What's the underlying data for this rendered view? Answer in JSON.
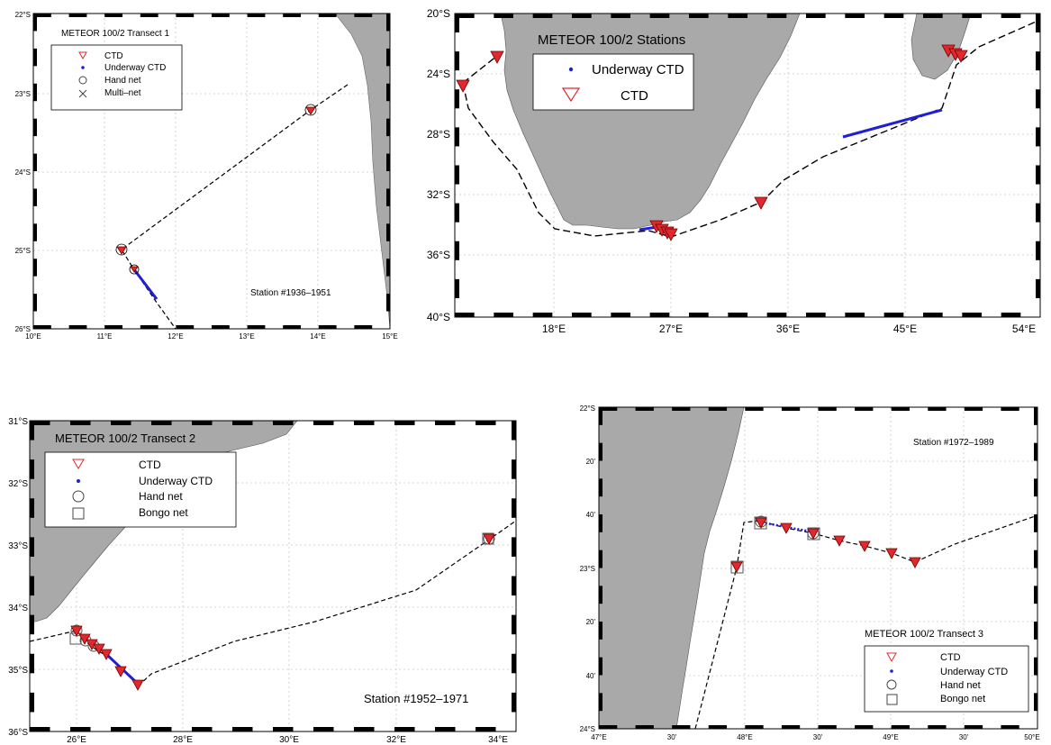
{
  "panels": {
    "transect1": {
      "title": "METEOR 100/2 Transect 1",
      "station_label": "Station #1936–1951",
      "legend": [
        "CTD",
        "Underway CTD",
        "Hand net",
        "Multi–net"
      ],
      "lon_ticks": [
        "10°E",
        "11°E",
        "12°E",
        "13°E",
        "14°E",
        "15°E"
      ],
      "lat_ticks": [
        "22°S",
        "23°S",
        "24°S",
        "25°S",
        "26°S"
      ]
    },
    "stations": {
      "title": "METEOR 100/2 Stations",
      "legend": [
        "Underway CTD",
        "CTD"
      ],
      "lon_ticks": [
        "18°E",
        "27°E",
        "36°E",
        "45°E",
        "54°E"
      ],
      "lat_ticks": [
        "20°S",
        "24°S",
        "28°S",
        "32°S",
        "36°S",
        "40°S"
      ]
    },
    "transect2": {
      "title": "METEOR 100/2 Transect 2",
      "station_label": "Station #1952–1971",
      "legend": [
        "CTD",
        "Underway CTD",
        "Hand net",
        "Bongo net"
      ],
      "lon_ticks": [
        "26°E",
        "28°E",
        "30°E",
        "32°E",
        "34°E"
      ],
      "lat_ticks": [
        "31°S",
        "32°S",
        "33°S",
        "34°S",
        "35°S",
        "36°S"
      ]
    },
    "transect3": {
      "title": "METEOR 100/2 Transect 3",
      "station_label": "Station #1972–1989",
      "legend": [
        "CTD",
        "Underway CTD",
        "Hand net",
        "Bongo net"
      ],
      "lon_ticks": [
        "47°E",
        "30'",
        "48°E",
        "30'",
        "49°E",
        "30'",
        "50°E"
      ],
      "lat_ticks": [
        "22°S",
        "20'",
        "40'",
        "23°S",
        "20'",
        "40'",
        "24°S"
      ]
    }
  },
  "colors": {
    "land": "#a9a9a9",
    "ctd": "#e0282d",
    "underway": "#1f1fd6",
    "track": "#000000",
    "grid": "#c8c8c8"
  }
}
